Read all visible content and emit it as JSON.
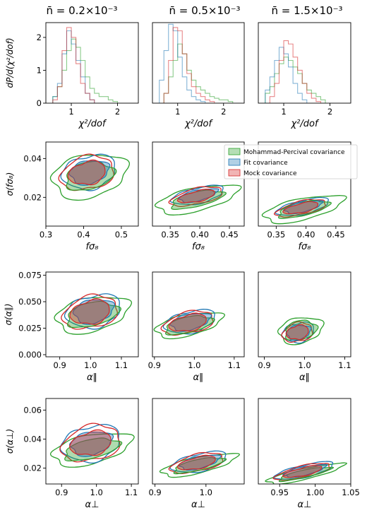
{
  "colors": {
    "green": "#2ca02c",
    "blue": "#1f77b4",
    "red": "#d62728"
  },
  "column_titles": [
    "n̄ = 0.2×10⁻³",
    "n̄ = 0.5×10⁻³",
    "n̄ = 1.5×10⁻³"
  ],
  "legend": {
    "placement": "upper-right of row 2, column 2",
    "entries": [
      {
        "label": "Mohammad-Percival covariance",
        "color": "#2ca02c"
      },
      {
        "label": "Fit covariance",
        "color": "#1f77b4"
      },
      {
        "label": "Mock covariance",
        "color": "#d62728"
      }
    ]
  },
  "chart_data": [
    {
      "type": "histogram",
      "row": 0,
      "col": 0,
      "title": "n̄ = 0.2×10⁻³",
      "xlabel": "χ²/dof",
      "ylabel": "dP/d(χ²/dof)",
      "xlim": [
        0.45,
        2.45
      ],
      "ylim": [
        0,
        2.45
      ],
      "xticks": [
        "1",
        "2"
      ],
      "yticks": [
        "0",
        "1",
        "2"
      ],
      "series": [
        {
          "color": "green",
          "x": [
            0.65,
            0.75,
            0.85,
            0.95,
            1.05,
            1.15,
            1.25,
            1.35,
            1.45,
            1.55,
            1.65,
            1.75,
            1.85,
            1.95
          ],
          "values": [
            0.2,
            0.5,
            1.0,
            1.6,
            1.95,
            1.7,
            1.3,
            0.8,
            0.45,
            0.3,
            0.2,
            0.2,
            0.1,
            0.05
          ]
        },
        {
          "color": "blue",
          "x": [
            0.65,
            0.75,
            0.85,
            0.95,
            1.05,
            1.15,
            1.25,
            1.35,
            1.45
          ],
          "values": [
            0.2,
            0.6,
            1.5,
            2.2,
            1.8,
            1.3,
            0.8,
            0.3,
            0.1
          ]
        },
        {
          "color": "red",
          "x": [
            0.65,
            0.75,
            0.85,
            0.95,
            1.05,
            1.15,
            1.25,
            1.35,
            1.45
          ],
          "values": [
            0.1,
            0.5,
            1.6,
            2.3,
            2.0,
            1.2,
            0.6,
            0.3,
            0.1
          ]
        }
      ]
    },
    {
      "type": "histogram",
      "row": 0,
      "col": 1,
      "title": "n̄ = 0.5×10⁻³",
      "xlabel": "χ²/dof",
      "ylabel": "",
      "xlim": [
        0.45,
        2.45
      ],
      "ylim": [
        0,
        2.45
      ],
      "xticks": [
        "1",
        "2"
      ],
      "yticks": [],
      "series": [
        {
          "color": "green",
          "x": [
            0.75,
            0.85,
            0.95,
            1.05,
            1.15,
            1.25,
            1.35,
            1.45,
            1.55,
            1.65,
            1.75,
            1.85,
            1.95,
            2.05,
            2.15
          ],
          "values": [
            0.3,
            0.8,
            1.3,
            1.8,
            1.5,
            1.0,
            0.7,
            0.5,
            0.4,
            0.3,
            0.2,
            0.15,
            0.1,
            0.1,
            0.05
          ]
        },
        {
          "color": "blue",
          "x": [
            0.65,
            0.75,
            0.85,
            0.95,
            1.05,
            1.15,
            1.25,
            1.35,
            1.45,
            1.55
          ],
          "values": [
            0.7,
            1.6,
            2.4,
            2.2,
            1.4,
            0.8,
            0.4,
            0.2,
            0.1,
            0.05
          ]
        },
        {
          "color": "red",
          "x": [
            0.75,
            0.85,
            0.95,
            1.05,
            1.15,
            1.25,
            1.35,
            1.45,
            1.55,
            1.65,
            1.75
          ],
          "values": [
            0.3,
            1.3,
            2.3,
            2.2,
            1.5,
            0.9,
            0.5,
            0.3,
            0.2,
            0.1,
            0.05
          ]
        }
      ]
    },
    {
      "type": "histogram",
      "row": 0,
      "col": 2,
      "title": "n̄ = 1.5×10⁻³",
      "xlabel": "χ²/dof",
      "ylabel": "",
      "xlim": [
        0.45,
        2.45
      ],
      "ylim": [
        0,
        2.45
      ],
      "xticks": [
        "1",
        "2"
      ],
      "yticks": [],
      "series": [
        {
          "color": "green",
          "x": [
            0.65,
            0.75,
            0.85,
            0.95,
            1.05,
            1.15,
            1.25,
            1.35,
            1.45,
            1.55,
            1.65,
            1.75,
            1.85
          ],
          "values": [
            0.3,
            0.5,
            0.9,
            1.2,
            1.4,
            1.3,
            1.1,
            0.9,
            0.6,
            0.4,
            0.3,
            0.2,
            0.1
          ]
        },
        {
          "color": "blue",
          "x": [
            0.65,
            0.75,
            0.85,
            0.95,
            1.05,
            1.15,
            1.25,
            1.35,
            1.45
          ],
          "values": [
            0.4,
            0.8,
            1.3,
            1.7,
            1.5,
            1.1,
            0.6,
            0.3,
            0.1
          ]
        },
        {
          "color": "red",
          "x": [
            0.75,
            0.85,
            0.95,
            1.05,
            1.15,
            1.25,
            1.35,
            1.45,
            1.55,
            1.65,
            1.75
          ],
          "values": [
            0.2,
            0.6,
            1.3,
            1.9,
            1.8,
            1.4,
            1.0,
            0.6,
            0.3,
            0.15,
            0.05
          ]
        }
      ]
    },
    {
      "type": "contour",
      "row": 1,
      "col": 0,
      "xlabel": "fσ₈",
      "ylabel": "σ(fσ₈)",
      "xlim": [
        0.3,
        0.545
      ],
      "ylim": [
        0.0052,
        0.0485
      ],
      "xticks": [
        "0.3",
        "0.4",
        "0.5"
      ],
      "yticks": [
        "0.02",
        "0.04"
      ],
      "xtick_values": [
        0.3,
        0.4,
        0.5
      ],
      "ytick_values": [
        0.02,
        0.04
      ],
      "contours": {
        "green": {
          "cx": 0.415,
          "cy": 0.031,
          "outer": [
            0.1,
            0.011
          ],
          "inner": [
            0.065,
            0.007
          ]
        },
        "blue": {
          "cx": 0.415,
          "cy": 0.033,
          "outer": [
            0.072,
            0.0085
          ],
          "inner": [
            0.052,
            0.006
          ]
        },
        "red": {
          "cx": 0.41,
          "cy": 0.0325,
          "outer": [
            0.072,
            0.0085
          ],
          "inner": [
            0.05,
            0.0058
          ]
        }
      }
    },
    {
      "type": "contour",
      "row": 1,
      "col": 1,
      "xlabel": "fσ₈",
      "ylabel": "",
      "xlim": [
        0.32,
        0.475
      ],
      "ylim": [
        0.0052,
        0.0485
      ],
      "xticks": [
        "0.35",
        "0.40",
        "0.45"
      ],
      "yticks": [],
      "xtick_values": [
        0.35,
        0.4,
        0.45
      ],
      "ytick_values": [],
      "contours": {
        "green": {
          "cx": 0.395,
          "cy": 0.019,
          "outer": [
            0.07,
            0.006
          ],
          "inner": [
            0.045,
            0.0038
          ]
        },
        "blue": {
          "cx": 0.397,
          "cy": 0.021,
          "outer": [
            0.045,
            0.004
          ],
          "inner": [
            0.033,
            0.0028
          ]
        },
        "red": {
          "cx": 0.395,
          "cy": 0.0205,
          "outer": [
            0.045,
            0.004
          ],
          "inner": [
            0.032,
            0.0027
          ]
        }
      }
    },
    {
      "type": "contour",
      "row": 1,
      "col": 2,
      "xlabel": "fσ₈",
      "ylabel": "",
      "xlim": [
        0.32,
        0.475
      ],
      "ylim": [
        0.0052,
        0.0485
      ],
      "xticks": [
        "0.35",
        "0.40",
        "0.45"
      ],
      "yticks": [],
      "xtick_values": [
        0.35,
        0.4,
        0.45
      ],
      "ytick_values": [],
      "contours": {
        "green": {
          "cx": 0.395,
          "cy": 0.014,
          "outer": [
            0.068,
            0.0055
          ],
          "inner": [
            0.043,
            0.0035
          ]
        },
        "blue": {
          "cx": 0.395,
          "cy": 0.015,
          "outer": [
            0.045,
            0.0035
          ],
          "inner": [
            0.032,
            0.0025
          ]
        },
        "red": {
          "cx": 0.392,
          "cy": 0.0145,
          "outer": [
            0.043,
            0.0034
          ],
          "inner": [
            0.03,
            0.0024
          ]
        }
      }
    },
    {
      "type": "contour",
      "row": 2,
      "col": 0,
      "xlabel": "α∥",
      "ylabel": "σ(α∥)",
      "xlim": [
        0.855,
        1.155
      ],
      "ylim": [
        -0.002,
        0.078
      ],
      "xticks": [
        "0.9",
        "1.0",
        "1.1"
      ],
      "yticks": [
        "0.000",
        "0.025",
        "0.050",
        "0.075"
      ],
      "xtick_values": [
        0.9,
        1.0,
        1.1
      ],
      "ytick_values": [
        0.0,
        0.025,
        0.05,
        0.075
      ],
      "contours": {
        "green": {
          "cx": 1.005,
          "cy": 0.038,
          "outer": [
            0.12,
            0.016
          ],
          "inner": [
            0.085,
            0.011
          ]
        },
        "blue": {
          "cx": 1.01,
          "cy": 0.041,
          "outer": [
            0.09,
            0.015
          ],
          "inner": [
            0.065,
            0.011
          ]
        },
        "red": {
          "cx": 1.0,
          "cy": 0.04,
          "outer": [
            0.09,
            0.015
          ],
          "inner": [
            0.065,
            0.011
          ]
        }
      }
    },
    {
      "type": "contour",
      "row": 2,
      "col": 1,
      "xlabel": "α∥",
      "ylabel": "",
      "xlim": [
        0.895,
        1.125
      ],
      "ylim": [
        -0.002,
        0.078
      ],
      "xticks": [
        "0.9",
        "1.0",
        "1.1"
      ],
      "yticks": [],
      "xtick_values": [
        0.9,
        1.0,
        1.1
      ],
      "ytick_values": [],
      "contours": {
        "green": {
          "cx": 0.985,
          "cy": 0.028,
          "outer": [
            0.085,
            0.01
          ],
          "inner": [
            0.06,
            0.0075
          ]
        },
        "blue": {
          "cx": 0.99,
          "cy": 0.031,
          "outer": [
            0.065,
            0.01
          ],
          "inner": [
            0.05,
            0.0075
          ]
        },
        "red": {
          "cx": 0.985,
          "cy": 0.03,
          "outer": [
            0.065,
            0.01
          ],
          "inner": [
            0.048,
            0.0075
          ]
        }
      }
    },
    {
      "type": "contour",
      "row": 2,
      "col": 2,
      "xlabel": "α∥",
      "ylabel": "",
      "xlim": [
        0.885,
        1.115
      ],
      "ylim": [
        -0.002,
        0.078
      ],
      "xticks": [
        "0.9",
        "1.0",
        "1.1"
      ],
      "yticks": [],
      "xtick_values": [
        0.9,
        1.0,
        1.1
      ],
      "ytick_values": [],
      "contours": {
        "green": {
          "cx": 0.99,
          "cy": 0.023,
          "outer": [
            0.055,
            0.012
          ],
          "inner": [
            0.04,
            0.009
          ]
        },
        "blue": {
          "cx": 0.985,
          "cy": 0.021,
          "outer": [
            0.04,
            0.009
          ],
          "inner": [
            0.03,
            0.0068
          ]
        },
        "red": {
          "cx": 0.983,
          "cy": 0.021,
          "outer": [
            0.038,
            0.0088
          ],
          "inner": [
            0.028,
            0.0065
          ]
        }
      }
    },
    {
      "type": "contour",
      "row": 3,
      "col": 0,
      "xlabel": "α⊥",
      "ylabel": "σ(α⊥)",
      "xlim": [
        0.855,
        1.12
      ],
      "ylim": [
        0.009,
        0.068
      ],
      "xticks": [
        "0.9",
        "1.0",
        "1.1"
      ],
      "yticks": [
        "0.02",
        "0.04",
        "0.06"
      ],
      "xtick_values": [
        0.9,
        1.0,
        1.1
      ],
      "ytick_values": [
        0.02,
        0.04,
        0.06
      ],
      "contours": {
        "green": {
          "cx": 0.985,
          "cy": 0.033,
          "outer": [
            0.115,
            0.01
          ],
          "inner": [
            0.08,
            0.0065
          ]
        },
        "blue": {
          "cx": 0.985,
          "cy": 0.037,
          "outer": [
            0.085,
            0.012
          ],
          "inner": [
            0.06,
            0.008
          ]
        },
        "red": {
          "cx": 0.985,
          "cy": 0.037,
          "outer": [
            0.085,
            0.012
          ],
          "inner": [
            0.06,
            0.008
          ]
        }
      }
    },
    {
      "type": "contour",
      "row": 3,
      "col": 1,
      "xlabel": "α⊥",
      "ylabel": "",
      "xlim": [
        0.895,
        1.075
      ],
      "ylim": [
        0.009,
        0.068
      ],
      "xticks": [
        "0.9",
        "1.0"
      ],
      "yticks": [],
      "xtick_values": [
        0.9,
        1.0
      ],
      "ytick_values": [],
      "contours": {
        "green": {
          "cx": 0.985,
          "cy": 0.022,
          "outer": [
            0.075,
            0.0055
          ],
          "inner": [
            0.05,
            0.0038
          ]
        },
        "blue": {
          "cx": 0.987,
          "cy": 0.024,
          "outer": [
            0.055,
            0.006
          ],
          "inner": [
            0.04,
            0.0042
          ]
        },
        "red": {
          "cx": 0.983,
          "cy": 0.0235,
          "outer": [
            0.053,
            0.0058
          ],
          "inner": [
            0.038,
            0.004
          ]
        }
      }
    },
    {
      "type": "contour",
      "row": 3,
      "col": 2,
      "xlabel": "α⊥",
      "ylabel": "",
      "xlim": [
        0.92,
        1.05
      ],
      "ylim": [
        0.009,
        0.068
      ],
      "xticks": [
        "0.95",
        "1.00",
        "1.05"
      ],
      "yticks": [],
      "xtick_values": [
        0.95,
        1.0,
        1.05
      ],
      "ytick_values": [],
      "contours": {
        "green": {
          "cx": 0.985,
          "cy": 0.016,
          "outer": [
            0.055,
            0.0038
          ],
          "inner": [
            0.037,
            0.0026
          ]
        },
        "blue": {
          "cx": 0.985,
          "cy": 0.018,
          "outer": [
            0.042,
            0.0042
          ],
          "inner": [
            0.03,
            0.003
          ]
        },
        "red": {
          "cx": 0.983,
          "cy": 0.0175,
          "outer": [
            0.04,
            0.004
          ],
          "inner": [
            0.028,
            0.0028
          ]
        }
      }
    }
  ]
}
